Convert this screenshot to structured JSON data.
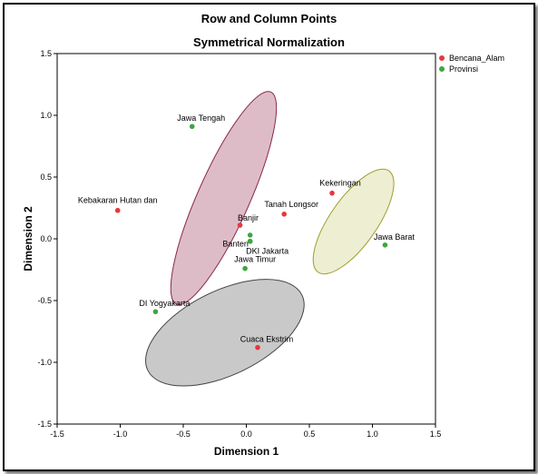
{
  "chart_data": {
    "type": "scatter",
    "title": "Row and Column Points",
    "subtitle": "Symmetrical Normalization",
    "xlabel": "Dimension 1",
    "ylabel": "Dimension 2",
    "xlim": [
      -1.5,
      1.5
    ],
    "ylim": [
      -1.5,
      1.5
    ],
    "xticks": [
      "-1.5",
      "-1.0",
      "-0.5",
      "0.0",
      "0.5",
      "1.0",
      "1.5"
    ],
    "yticks": [
      "1.5",
      "1.0",
      "0.5",
      "0.0",
      "-0.5",
      "-1.0",
      "-1.5"
    ],
    "grid": false,
    "legend_position": "top-right",
    "series": [
      {
        "name": "Bencana_Alam",
        "color": "#e8363e",
        "points": [
          {
            "label": "Kebakaran Hutan dan",
            "x": -1.02,
            "y": 0.23
          },
          {
            "label": "Banjir",
            "x": -0.05,
            "y": 0.11
          },
          {
            "label": "Tanah Longsor",
            "x": 0.3,
            "y": 0.2
          },
          {
            "label": "Kekeringan",
            "x": 0.68,
            "y": 0.37
          },
          {
            "label": "Cuaca Ekstrim",
            "x": 0.09,
            "y": -0.88
          }
        ]
      },
      {
        "name": "Provinsi",
        "color": "#3fa63f",
        "points": [
          {
            "label": "Jawa Tengah",
            "x": -0.43,
            "y": 0.91
          },
          {
            "label": "",
            "x": 0.03,
            "y": 0.03
          },
          {
            "label": "Banten",
            "x": 0.03,
            "y": -0.02
          },
          {
            "label": "DKI Jakarta",
            "x": 0.03,
            "y": -0.02
          },
          {
            "label": "Jawa Timur",
            "x": -0.01,
            "y": -0.24
          },
          {
            "label": "Jawa Barat",
            "x": 1.1,
            "y": -0.05
          },
          {
            "label": "DI Yogyakarta",
            "x": -0.72,
            "y": -0.59
          }
        ]
      }
    ],
    "groups": [
      {
        "color": "#ddbcc8",
        "stroke": "#8b2a4a",
        "cx": -0.18,
        "cy": 0.33,
        "rx": 0.92,
        "ry": 0.21,
        "angle": -66
      },
      {
        "color": "#eeeed2",
        "stroke": "#9e9e30",
        "cx": 0.85,
        "cy": 0.14,
        "rx": 0.49,
        "ry": 0.19,
        "angle": -55
      },
      {
        "color": "#c9c9ca",
        "stroke": "#444444",
        "cx": -0.17,
        "cy": -0.76,
        "rx": 0.68,
        "ry": 0.34,
        "angle": -26
      }
    ]
  }
}
